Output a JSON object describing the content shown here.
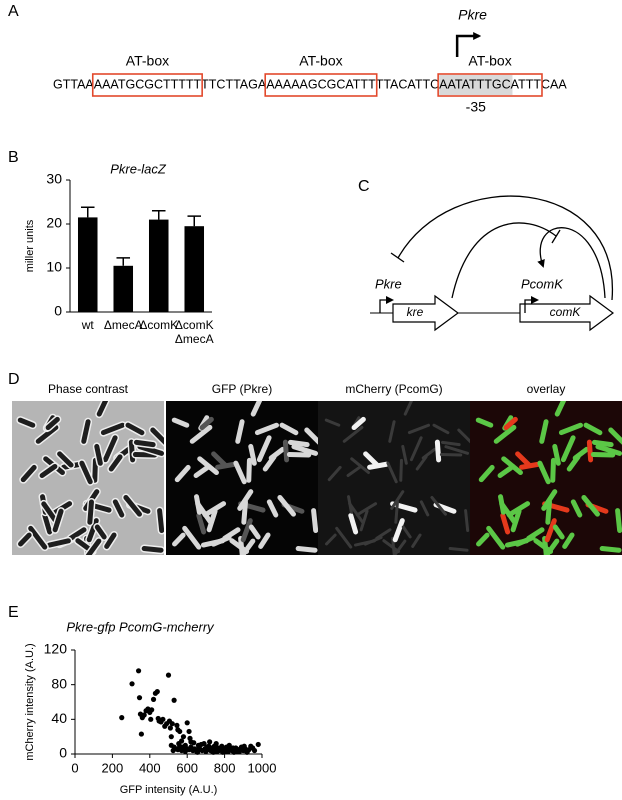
{
  "panel_labels": [
    "A",
    "B",
    "C",
    "D",
    "E"
  ],
  "sequence": {
    "promoter": "Pkre",
    "segments": [
      "GTTAA",
      "AAATGCGCTTTTT",
      "TTCTTAGA",
      "AAAAAGCGCATTT",
      "TTACATTC",
      "AATATTTGCATTT",
      "CAA"
    ],
    "box_labels": [
      "AT-box",
      "AT-box",
      "AT-box"
    ],
    "minus35": "-35"
  },
  "diagram": {
    "promoter1": "Pkre",
    "gene1": "kre",
    "promoter2": "PcomK",
    "gene2": "comK"
  },
  "microscopy": {
    "titles": [
      "Phase contrast",
      "GFP (Pkre)",
      "mCherry (PcomG)",
      "overlay"
    ]
  },
  "chart_data": [
    {
      "type": "bar",
      "title": "Pkre-lacZ",
      "y_label": "miller units",
      "categories": [
        "wt",
        "ΔmecA",
        "ΔcomK",
        "ΔcomK ΔmecA"
      ],
      "values": [
        21.5,
        10.5,
        21,
        19.5
      ],
      "errors": [
        2.3,
        1.8,
        2,
        2.3
      ],
      "color": "#000000",
      "ylim": [
        0,
        30
      ],
      "yticks": [
        0,
        10,
        20,
        30
      ]
    },
    {
      "type": "scatter",
      "title": "Pkre-gfp PcomG-mcherry",
      "x_label": "GFP intensity (A.U.)",
      "y_label": "mCherry intensity (A.U.)",
      "color": "#000000",
      "xlim": [
        0,
        1000
      ],
      "xticks": [
        0,
        200,
        400,
        600,
        800,
        1000
      ],
      "ylim": [
        0,
        120
      ],
      "yticks": [
        0,
        40,
        80,
        120
      ],
      "x": [
        250,
        305,
        340,
        345,
        350,
        355,
        360,
        370,
        380,
        390,
        400,
        405,
        410,
        420,
        430,
        440,
        445,
        450,
        460,
        470,
        480,
        490,
        500,
        505,
        510,
        515,
        520,
        530,
        545,
        550,
        560,
        570,
        580,
        590,
        600,
        610,
        615,
        620,
        530,
        540,
        550,
        560,
        570,
        580,
        590,
        600,
        610,
        620,
        630,
        640,
        650,
        660,
        665,
        670,
        680,
        690,
        695,
        700,
        705,
        710,
        720,
        725,
        730,
        740,
        745,
        750,
        760,
        765,
        770,
        780,
        790,
        800,
        810,
        820,
        830,
        840,
        850,
        860,
        870,
        880,
        890,
        900,
        910,
        920,
        930,
        940,
        960,
        980,
        515,
        525,
        555,
        575,
        635,
        655,
        675,
        715,
        735,
        755,
        785,
        805,
        825,
        845,
        865,
        885,
        905,
        925,
        950
      ],
      "y": [
        42,
        81,
        96,
        65,
        46,
        23,
        42,
        45,
        50,
        52,
        48,
        40,
        51,
        63,
        70,
        72,
        41,
        38,
        37,
        40,
        32,
        35,
        91,
        38,
        30,
        20,
        35,
        62,
        33,
        28,
        26,
        15,
        20,
        10,
        36,
        26,
        18,
        14,
        8,
        6,
        5,
        9,
        4,
        7,
        3,
        6,
        5,
        8,
        4,
        6,
        3,
        10,
        7,
        5,
        4,
        12,
        6,
        3,
        8,
        5,
        14,
        4,
        7,
        2,
        9,
        5,
        3,
        7,
        4,
        6,
        2,
        5,
        8,
        3,
        6,
        4,
        2,
        7,
        5,
        3,
        8,
        4,
        6,
        2,
        5,
        9,
        4,
        11,
        10,
        4,
        12,
        8,
        13,
        2,
        11,
        9,
        3,
        12,
        9,
        3,
        10,
        7,
        3,
        6,
        9,
        4,
        7
      ]
    }
  ]
}
